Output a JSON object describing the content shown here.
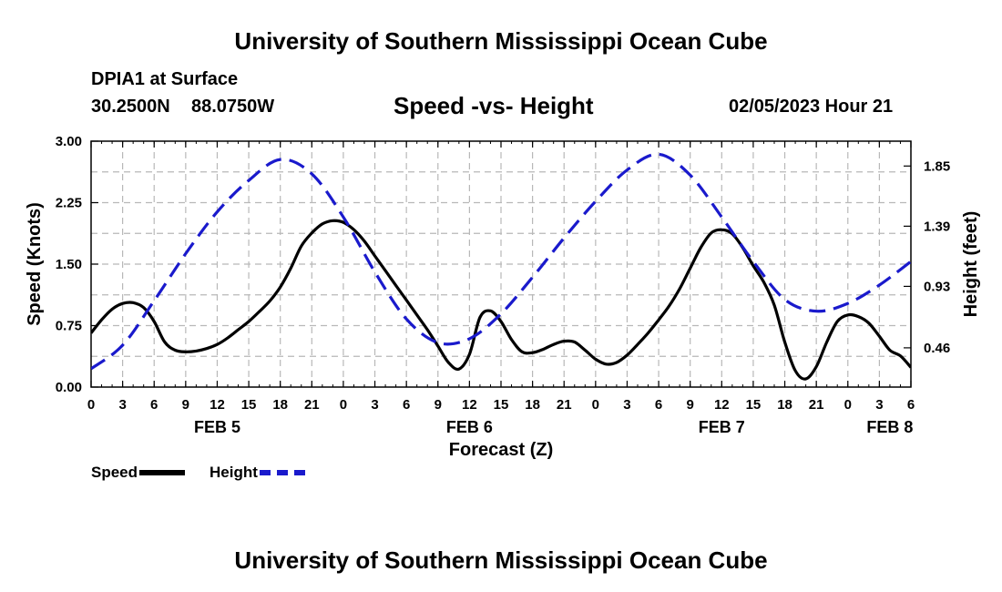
{
  "header": {
    "title": "University of Southern Mississippi Ocean Cube",
    "station": "DPIA1 at Surface",
    "lat": "30.2500N",
    "lon": "88.0750W",
    "subtitle": "Speed -vs- Height",
    "datetime": "02/05/2023 Hour 21"
  },
  "footer": {
    "title": "University of Southern Mississippi Ocean Cube"
  },
  "legend": {
    "items": [
      {
        "label": "Speed",
        "color": "#000000",
        "style": "solid"
      },
      {
        "label": "Height",
        "color": "#1a1acc",
        "style": "dashed"
      }
    ]
  },
  "chart_data": {
    "type": "line",
    "title": "Speed -vs- Height",
    "xlabel": "Forecast (Z)",
    "ylabel_left": "Speed (Knots)",
    "ylabel_right": "Height (feet)",
    "x_range_hours": [
      0,
      78
    ],
    "x_ticks": [
      {
        "hour": 0,
        "label": "0"
      },
      {
        "hour": 3,
        "label": "3"
      },
      {
        "hour": 6,
        "label": "6"
      },
      {
        "hour": 9,
        "label": "9"
      },
      {
        "hour": 12,
        "label": "12"
      },
      {
        "hour": 15,
        "label": "15"
      },
      {
        "hour": 18,
        "label": "18"
      },
      {
        "hour": 21,
        "label": "21"
      },
      {
        "hour": 24,
        "label": "0"
      },
      {
        "hour": 27,
        "label": "3"
      },
      {
        "hour": 30,
        "label": "6"
      },
      {
        "hour": 33,
        "label": "9"
      },
      {
        "hour": 36,
        "label": "12"
      },
      {
        "hour": 39,
        "label": "15"
      },
      {
        "hour": 42,
        "label": "18"
      },
      {
        "hour": 45,
        "label": "21"
      },
      {
        "hour": 48,
        "label": "0"
      },
      {
        "hour": 51,
        "label": "3"
      },
      {
        "hour": 54,
        "label": "6"
      },
      {
        "hour": 57,
        "label": "9"
      },
      {
        "hour": 60,
        "label": "12"
      },
      {
        "hour": 63,
        "label": "15"
      },
      {
        "hour": 66,
        "label": "18"
      },
      {
        "hour": 69,
        "label": "21"
      },
      {
        "hour": 72,
        "label": "0"
      },
      {
        "hour": 75,
        "label": "3"
      },
      {
        "hour": 78,
        "label": "6"
      }
    ],
    "date_labels": [
      {
        "hour": 12,
        "label": "FEB 5"
      },
      {
        "hour": 36,
        "label": "FEB 6"
      },
      {
        "hour": 60,
        "label": "FEB 7"
      },
      {
        "hour": 76,
        "label": "FEB 8"
      }
    ],
    "y_left": {
      "range": [
        0,
        3.0
      ],
      "ticks": [
        "0.00",
        "0.75",
        "1.50",
        "2.25",
        "3.00"
      ]
    },
    "y_right": {
      "range": [
        0.16,
        2.04
      ],
      "ticks": [
        "0.46",
        "0.93",
        "1.39",
        "1.85"
      ]
    },
    "series": [
      {
        "name": "Speed",
        "axis": "left",
        "hours": [
          0,
          1,
          2,
          3,
          4,
          5,
          6,
          7,
          8,
          9,
          10,
          11,
          12,
          13,
          14,
          15,
          16,
          17,
          18,
          19,
          20,
          21,
          22,
          23,
          24,
          25,
          26,
          27,
          28,
          29,
          30,
          31,
          32,
          33,
          34,
          35,
          36,
          37,
          38,
          39,
          40,
          41,
          42,
          43,
          44,
          45,
          46,
          47,
          48,
          49,
          50,
          51,
          52,
          53,
          54,
          55,
          56,
          57,
          58,
          59,
          60,
          61,
          62,
          63,
          64,
          65,
          66,
          67,
          68,
          69,
          70,
          71,
          72,
          73,
          74,
          75,
          76,
          77,
          78
        ],
        "values": [
          0.66,
          0.82,
          0.95,
          1.02,
          1.03,
          0.97,
          0.8,
          0.55,
          0.45,
          0.43,
          0.44,
          0.47,
          0.52,
          0.6,
          0.7,
          0.8,
          0.92,
          1.05,
          1.22,
          1.45,
          1.72,
          1.88,
          1.99,
          2.03,
          2.01,
          1.92,
          1.78,
          1.6,
          1.42,
          1.24,
          1.06,
          0.88,
          0.7,
          0.5,
          0.3,
          0.22,
          0.4,
          0.85,
          0.93,
          0.8,
          0.58,
          0.43,
          0.42,
          0.46,
          0.52,
          0.56,
          0.55,
          0.45,
          0.34,
          0.28,
          0.3,
          0.39,
          0.52,
          0.66,
          0.82,
          0.99,
          1.2,
          1.45,
          1.7,
          1.88,
          1.92,
          1.87,
          1.7,
          1.48,
          1.28,
          1.0,
          0.55,
          0.2,
          0.1,
          0.25,
          0.55,
          0.8,
          0.88,
          0.86,
          0.78,
          0.62,
          0.45,
          0.38,
          0.24
        ]
      },
      {
        "name": "Height",
        "axis": "right",
        "hours": [
          0,
          3,
          6,
          9,
          12,
          15,
          18,
          21,
          24,
          27,
          30,
          33,
          36,
          39,
          42,
          45,
          48,
          51,
          54,
          57,
          60,
          63,
          66,
          69,
          72,
          75,
          78
        ],
        "values": [
          0.3,
          0.48,
          0.82,
          1.18,
          1.5,
          1.74,
          1.9,
          1.79,
          1.46,
          1.04,
          0.68,
          0.5,
          0.53,
          0.72,
          1.0,
          1.3,
          1.58,
          1.82,
          1.94,
          1.78,
          1.46,
          1.12,
          0.83,
          0.74,
          0.8,
          0.94,
          1.12
        ]
      }
    ]
  }
}
